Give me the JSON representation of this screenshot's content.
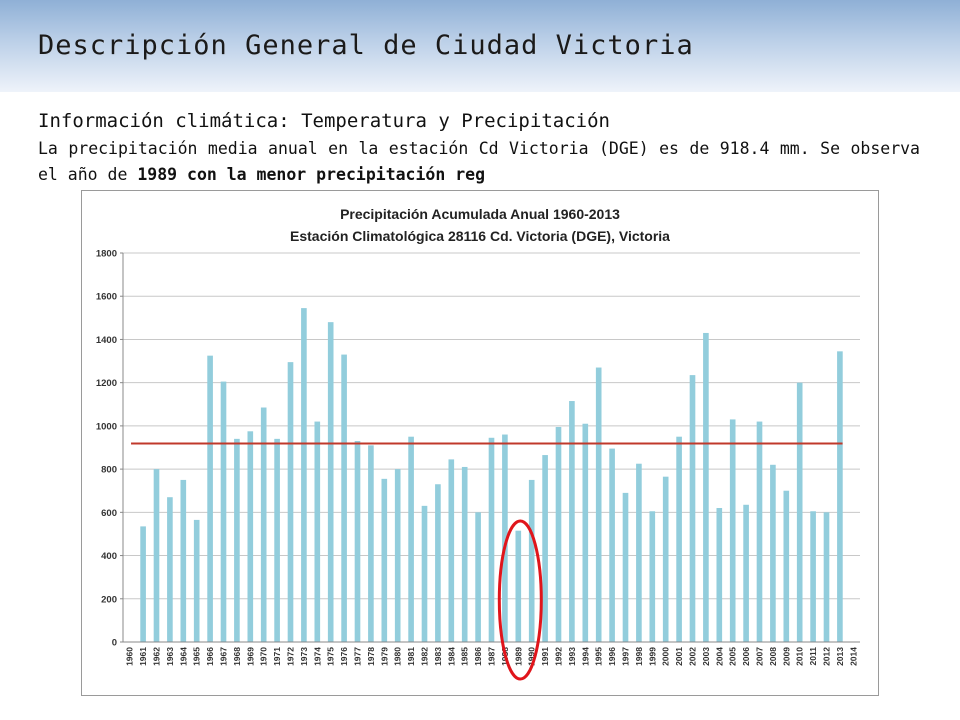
{
  "slide": {
    "title": "Descripción General de Ciudad Victoria",
    "subtitle": "Información climática: Temperatura y Precipitación",
    "paragraph_prefix": "La precipitación media anual en la estación Cd Victoria (DGE) es de 918.4 mm. Se observa el año de ",
    "paragraph_bold": "1989 con la menor precipitación reg"
  },
  "chart_data": {
    "type": "bar",
    "title": "Precipitación Acumulada Anual 1960-2013",
    "subtitle": "Estación Climatológica 28116 Cd. Victoria (DGE), Victoria",
    "xlabel": "",
    "ylabel": "",
    "ylim": [
      0,
      1800
    ],
    "yticks": [
      0,
      200,
      400,
      600,
      800,
      1000,
      1200,
      1400,
      1600,
      1800
    ],
    "grid": true,
    "legend": "none",
    "bar_color": "#92cddc",
    "mean_line": {
      "value": 918.4,
      "color": "#c0392b"
    },
    "highlight": {
      "category": "1989",
      "shape": "ellipse",
      "color": "#e0151b"
    },
    "categories": [
      "1960",
      "1961",
      "1962",
      "1963",
      "1964",
      "1965",
      "1966",
      "1967",
      "1968",
      "1969",
      "1970",
      "1971",
      "1972",
      "1973",
      "1974",
      "1975",
      "1976",
      "1977",
      "1978",
      "1979",
      "1980",
      "1981",
      "1982",
      "1983",
      "1984",
      "1985",
      "1986",
      "1987",
      "1988",
      "1989",
      "1990",
      "1991",
      "1992",
      "1993",
      "1994",
      "1995",
      "1996",
      "1997",
      "1998",
      "1999",
      "2000",
      "2001",
      "2002",
      "2003",
      "2004",
      "2005",
      "2006",
      "2007",
      "2008",
      "2009",
      "2010",
      "2011",
      "2012",
      "2013",
      "2014"
    ],
    "values": [
      null,
      535,
      800,
      670,
      750,
      565,
      1325,
      1205,
      940,
      975,
      1085,
      940,
      1295,
      1545,
      1020,
      1480,
      1330,
      930,
      910,
      755,
      800,
      950,
      630,
      730,
      845,
      810,
      600,
      945,
      960,
      515,
      750,
      865,
      995,
      1115,
      1010,
      1270,
      895,
      690,
      825,
      605,
      765,
      950,
      1235,
      1430,
      620,
      1030,
      635,
      1020,
      820,
      700,
      1200,
      605,
      600,
      1345,
      null
    ]
  }
}
